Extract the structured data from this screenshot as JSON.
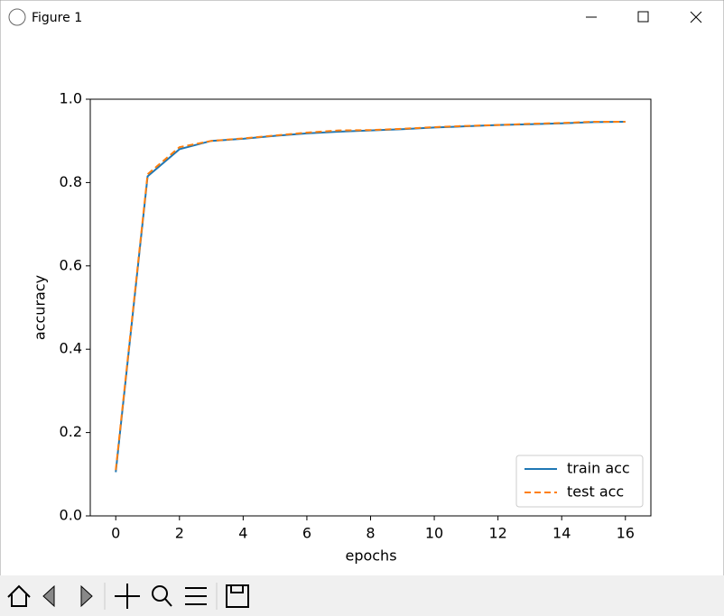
{
  "window": {
    "title": "Figure 1"
  },
  "chart_data": {
    "type": "line",
    "xlabel": "epochs",
    "ylabel": "accuracy",
    "x": [
      0,
      1,
      2,
      3,
      4,
      5,
      6,
      7,
      8,
      9,
      10,
      11,
      12,
      13,
      14,
      15,
      16
    ],
    "series": [
      {
        "name": "train acc",
        "color": "#1f77b4",
        "linestyle": "solid",
        "values": [
          0.105,
          0.815,
          0.88,
          0.9,
          0.905,
          0.912,
          0.918,
          0.922,
          0.925,
          0.928,
          0.932,
          0.935,
          0.938,
          0.94,
          0.942,
          0.945,
          0.946
        ]
      },
      {
        "name": "test acc",
        "color": "#ff7f0e",
        "linestyle": "dashed",
        "values": [
          0.11,
          0.82,
          0.885,
          0.9,
          0.906,
          0.913,
          0.92,
          0.925,
          0.926,
          0.929,
          0.933,
          0.936,
          0.938,
          0.941,
          0.943,
          0.946,
          0.946
        ]
      }
    ],
    "xlim": [
      -0.8,
      16.8
    ],
    "ylim": [
      0,
      1
    ],
    "xticks": [
      0,
      2,
      4,
      6,
      8,
      10,
      12,
      14,
      16
    ],
    "yticks": [
      {
        "value": 0,
        "label": "0.0"
      },
      0.2,
      0.4,
      0.6,
      0.8,
      {
        "value": 1,
        "label": "1.0"
      }
    ],
    "legend": "lower right"
  }
}
